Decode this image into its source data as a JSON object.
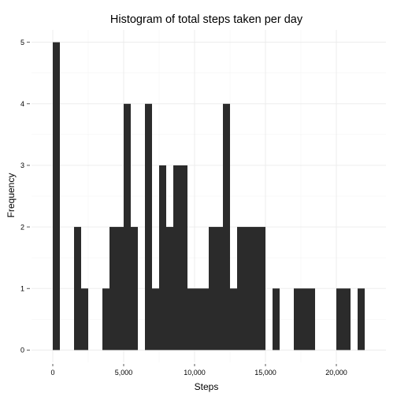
{
  "chart_data": {
    "type": "bar",
    "title": "Histogram of total steps taken per day",
    "xlabel": "Steps",
    "ylabel": "Frequency",
    "xlim": [
      -1500,
      23500
    ],
    "ylim": [
      -0.2,
      5.2
    ],
    "bin_width": 500,
    "x_ticks": [
      {
        "value": 0,
        "label": "0"
      },
      {
        "value": 5000,
        "label": "5,000"
      },
      {
        "value": 10000,
        "label": "10,000"
      },
      {
        "value": 15000,
        "label": "15,000"
      },
      {
        "value": 20000,
        "label": "20,000"
      }
    ],
    "y_ticks": [
      {
        "value": 0,
        "label": "0"
      },
      {
        "value": 1,
        "label": "1"
      },
      {
        "value": 2,
        "label": "2"
      },
      {
        "value": 3,
        "label": "3"
      },
      {
        "value": 4,
        "label": "4"
      },
      {
        "value": 5,
        "label": "5"
      }
    ],
    "grid": true,
    "bar_color": "#2b2b2b",
    "bins": [
      {
        "x0": 0,
        "x1": 500,
        "count": 5
      },
      {
        "x0": 1500,
        "x1": 2000,
        "count": 2
      },
      {
        "x0": 2000,
        "x1": 2500,
        "count": 1
      },
      {
        "x0": 3500,
        "x1": 4000,
        "count": 1
      },
      {
        "x0": 4000,
        "x1": 4500,
        "count": 2
      },
      {
        "x0": 4500,
        "x1": 5000,
        "count": 2
      },
      {
        "x0": 5000,
        "x1": 5500,
        "count": 4
      },
      {
        "x0": 5500,
        "x1": 6000,
        "count": 2
      },
      {
        "x0": 6500,
        "x1": 7000,
        "count": 4
      },
      {
        "x0": 7000,
        "x1": 7500,
        "count": 1
      },
      {
        "x0": 7500,
        "x1": 8000,
        "count": 3
      },
      {
        "x0": 8000,
        "x1": 8500,
        "count": 2
      },
      {
        "x0": 8500,
        "x1": 9000,
        "count": 3
      },
      {
        "x0": 9000,
        "x1": 9500,
        "count": 3
      },
      {
        "x0": 9500,
        "x1": 10000,
        "count": 1
      },
      {
        "x0": 10000,
        "x1": 10500,
        "count": 1
      },
      {
        "x0": 10500,
        "x1": 11000,
        "count": 1
      },
      {
        "x0": 11000,
        "x1": 11500,
        "count": 2
      },
      {
        "x0": 11500,
        "x1": 12000,
        "count": 2
      },
      {
        "x0": 12000,
        "x1": 12500,
        "count": 4
      },
      {
        "x0": 12500,
        "x1": 13000,
        "count": 1
      },
      {
        "x0": 13000,
        "x1": 13500,
        "count": 2
      },
      {
        "x0": 13500,
        "x1": 14000,
        "count": 2
      },
      {
        "x0": 14000,
        "x1": 14500,
        "count": 2
      },
      {
        "x0": 14500,
        "x1": 15000,
        "count": 2
      },
      {
        "x0": 15500,
        "x1": 16000,
        "count": 1
      },
      {
        "x0": 17000,
        "x1": 17500,
        "count": 1
      },
      {
        "x0": 17500,
        "x1": 18000,
        "count": 1
      },
      {
        "x0": 18000,
        "x1": 18500,
        "count": 1
      },
      {
        "x0": 20000,
        "x1": 20500,
        "count": 1
      },
      {
        "x0": 20500,
        "x1": 21000,
        "count": 1
      },
      {
        "x0": 21500,
        "x1": 22000,
        "count": 1
      }
    ]
  }
}
